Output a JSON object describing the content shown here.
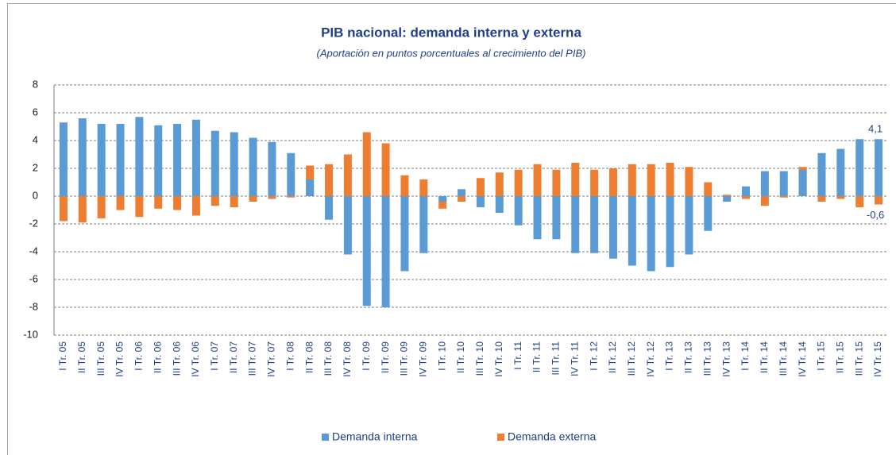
{
  "chart_data": {
    "type": "bar",
    "title": "PIB nacional: demanda interna y externa",
    "subtitle": "(Aportación en puntos porcentuales  al crecimiento  del PIB)",
    "categories": [
      "I Tr. 05",
      "II Tr. 05",
      "III Tr. 05",
      "IV Tr. 05",
      "I Tr. 06",
      "II Tr. 06",
      "III Tr. 06",
      "IV Tr. 06",
      "I Tr. 07",
      "II Tr. 07",
      "III Tr. 07",
      "IV Tr. 07",
      "I Tr. 08",
      "II Tr. 08",
      "III Tr. 08",
      "IV Tr. 08",
      "I Tr. 09",
      "II Tr. 09",
      "III Tr. 09",
      "IV Tr. 09",
      "I Tr. 10",
      "II Tr. 10",
      "III Tr. 10",
      "IV Tr. 10",
      "I Tr. 11",
      "II Tr. 11",
      "III Tr. 11",
      "IV Tr. 11",
      "I Tr. 12",
      "II Tr. 12",
      "III Tr. 12",
      "IV Tr. 12",
      "I Tr. 13",
      "II Tr. 13",
      "III Tr. 13",
      "IV Tr. 13",
      "I Tr. 14",
      "II Tr. 14",
      "III Tr. 14",
      "IV Tr. 14",
      "I Tr. 15",
      "II Tr. 15",
      "III Tr. 15",
      "IV Tr. 15"
    ],
    "series": [
      {
        "name": "Demanda interna",
        "color": "#5b9bd5",
        "values": [
          5.3,
          5.6,
          5.2,
          5.2,
          5.7,
          5.1,
          5.2,
          5.5,
          4.7,
          4.6,
          4.2,
          3.9,
          3.1,
          1.2,
          -1.7,
          -4.2,
          -7.9,
          -8.0,
          -5.4,
          -4.1,
          -0.4,
          0.5,
          -0.8,
          -1.2,
          -2.1,
          -3.1,
          -3.1,
          -4.1,
          -4.1,
          -4.5,
          -5.0,
          -5.4,
          -5.1,
          -4.2,
          -2.5,
          -0.4,
          0.7,
          1.8,
          1.8,
          1.9,
          3.1,
          3.4,
          4.1,
          4.1
        ],
        "value_labels": [
          null,
          null,
          null,
          null,
          null,
          null,
          null,
          null,
          null,
          null,
          null,
          null,
          null,
          null,
          null,
          null,
          null,
          null,
          null,
          null,
          null,
          null,
          null,
          null,
          null,
          null,
          null,
          null,
          null,
          null,
          null,
          null,
          null,
          null,
          null,
          null,
          null,
          null,
          null,
          null,
          null,
          null,
          null,
          "4,1"
        ]
      },
      {
        "name": "Demanda externa",
        "color": "#ed7d31",
        "values": [
          -1.8,
          -1.9,
          -1.6,
          -1.0,
          -1.5,
          -0.9,
          -1.0,
          -1.4,
          -0.7,
          -0.8,
          -0.4,
          -0.2,
          -0.1,
          2.2,
          2.3,
          3.0,
          4.6,
          3.8,
          1.5,
          1.2,
          -0.9,
          -0.4,
          1.3,
          1.7,
          1.9,
          2.3,
          1.9,
          2.4,
          1.9,
          2.0,
          2.3,
          2.3,
          2.4,
          2.1,
          1.0,
          0.1,
          -0.2,
          -0.7,
          -0.1,
          2.1,
          -0.4,
          -0.2,
          -0.8,
          -0.6
        ],
        "value_labels": [
          null,
          null,
          null,
          null,
          null,
          null,
          null,
          null,
          null,
          null,
          null,
          null,
          null,
          null,
          null,
          null,
          null,
          null,
          null,
          null,
          null,
          null,
          null,
          null,
          null,
          null,
          null,
          null,
          null,
          null,
          null,
          null,
          null,
          null,
          null,
          null,
          null,
          null,
          null,
          null,
          null,
          null,
          null,
          "-0,6"
        ]
      }
    ],
    "ylim": [
      -10,
      8
    ],
    "yticks": [
      -10,
      -8,
      -6,
      -4,
      -2,
      0,
      2,
      4,
      6,
      8
    ],
    "grid": true,
    "legend": "bottom"
  }
}
